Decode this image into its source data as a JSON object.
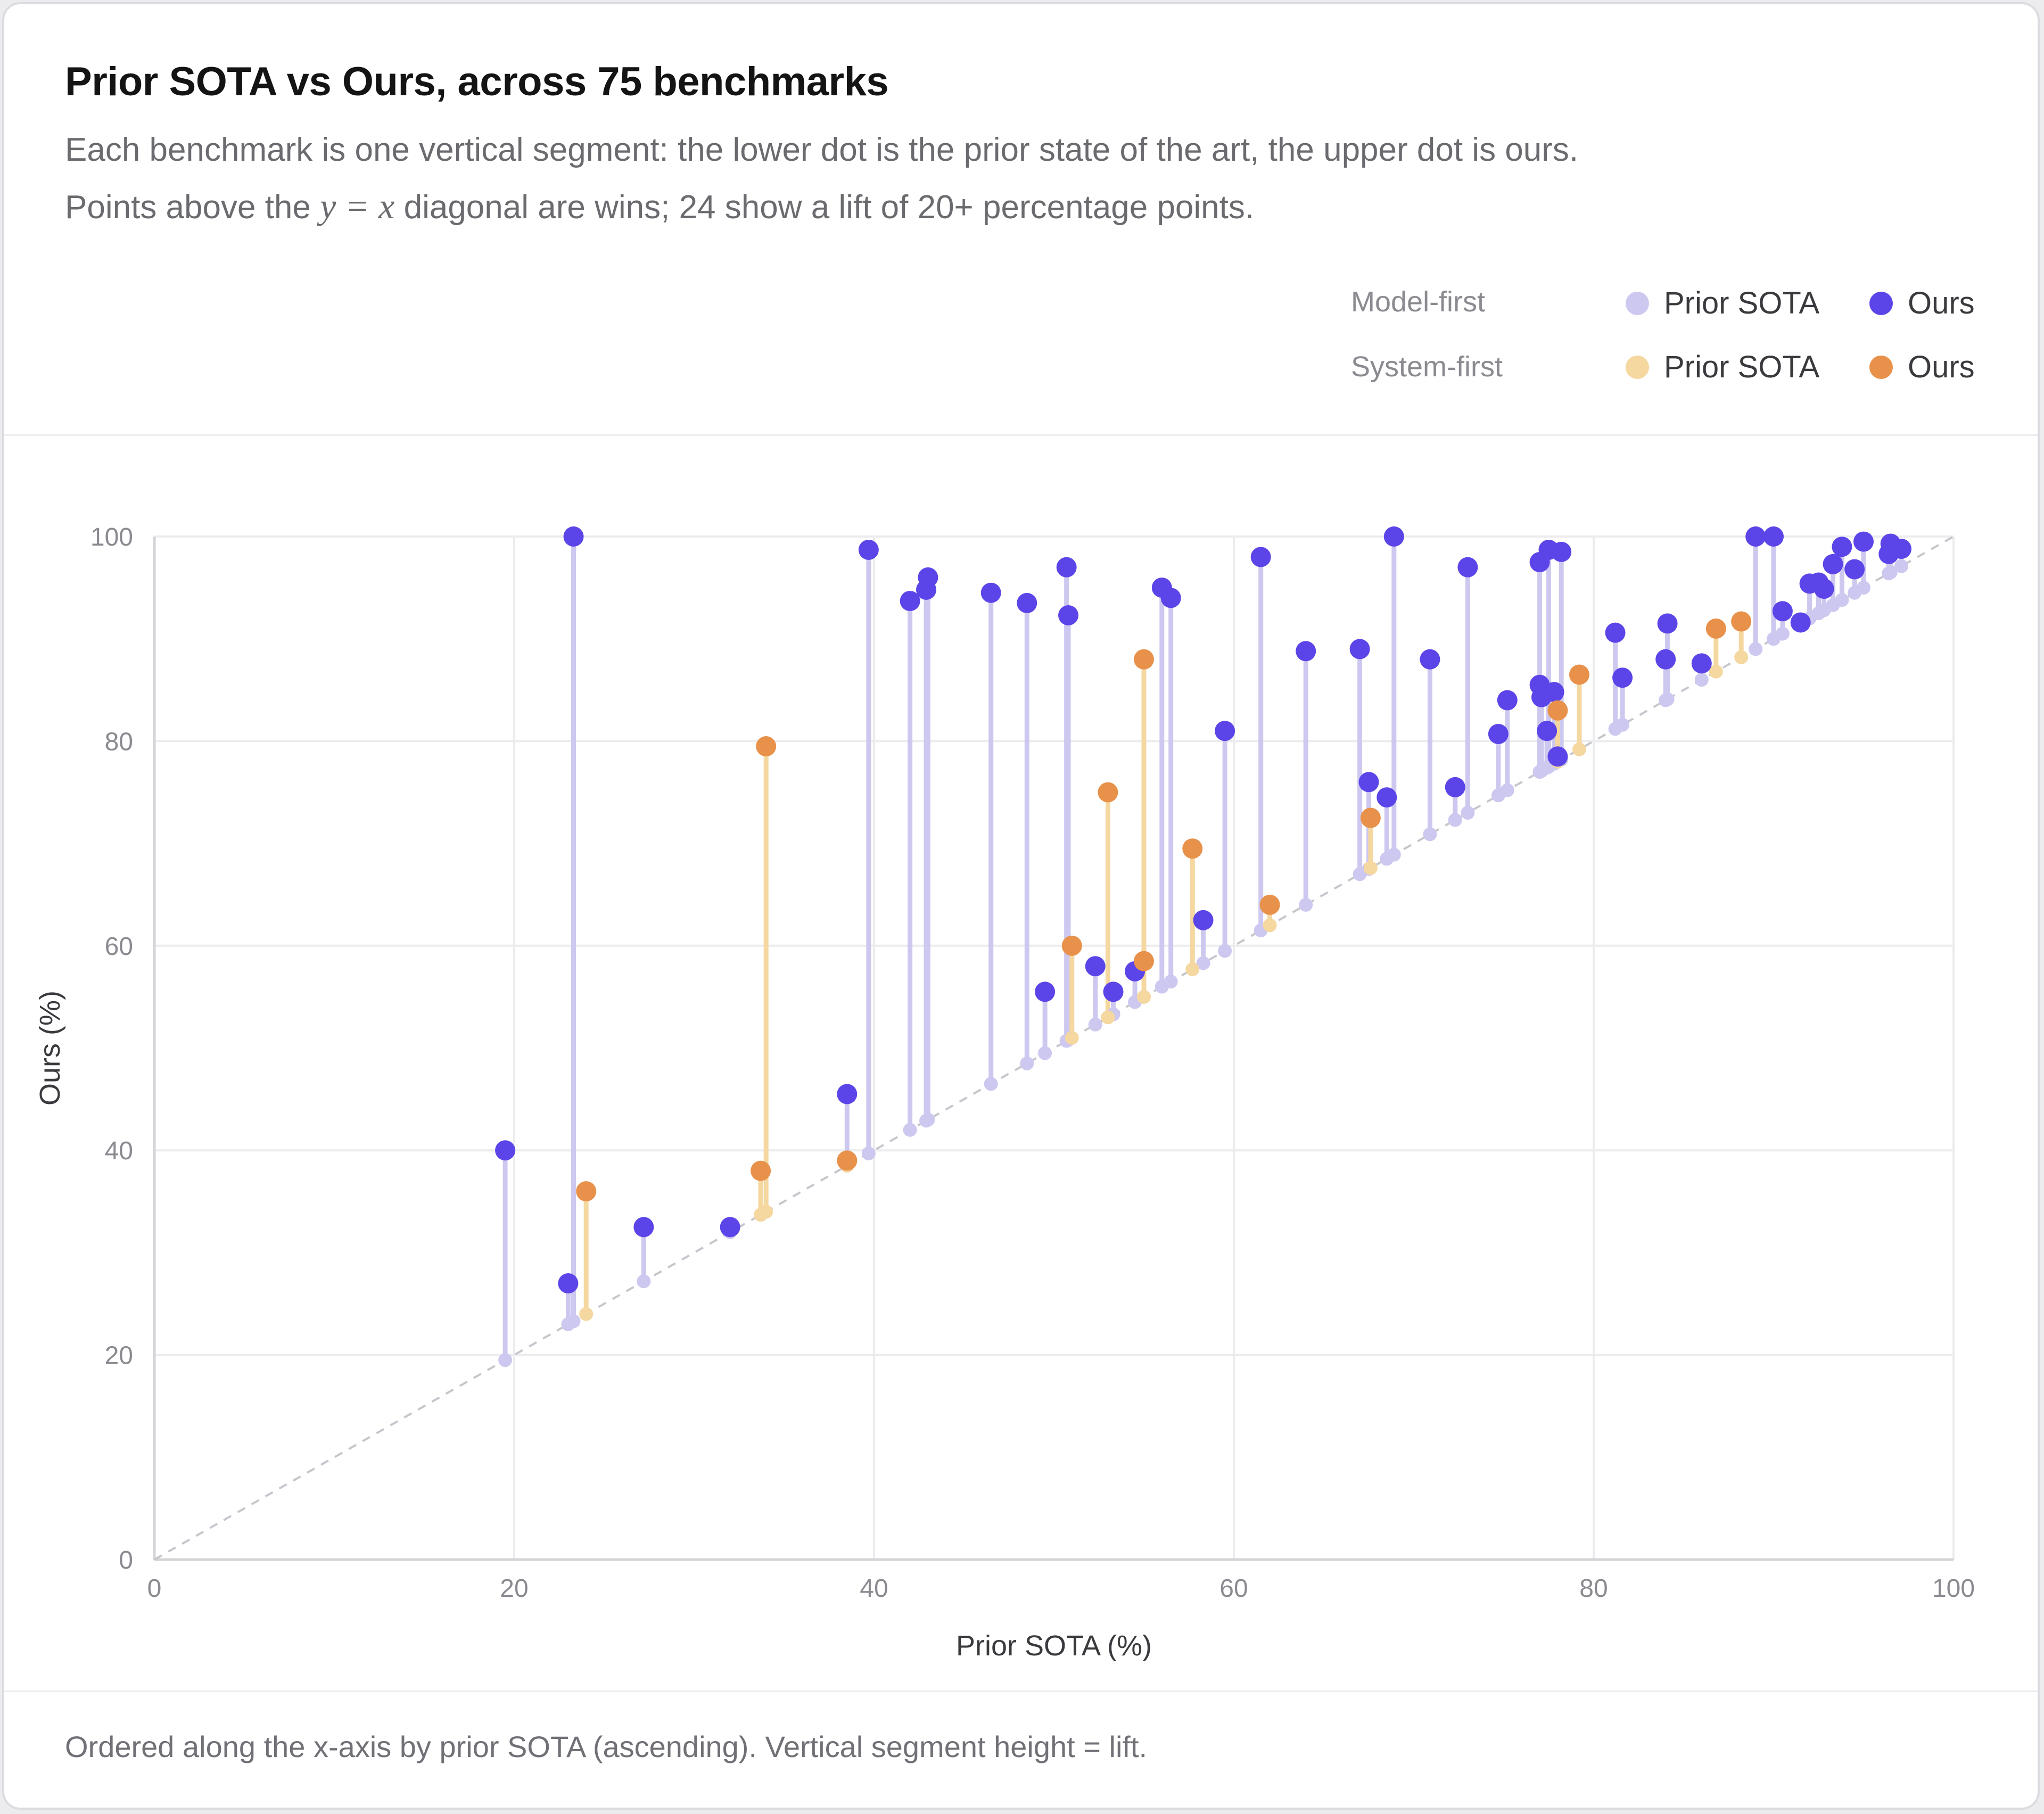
{
  "header": {
    "title": "Prior SOTA vs Ours, across 75 benchmarks",
    "subtitle_line1": "Each benchmark is one vertical segment: the lower dot is the prior state of the art, the upper dot is ours.",
    "subtitle_line2_pre": "Points above the ",
    "subtitle_line2_eq": "y = x",
    "subtitle_line2_post": " diagonal are wins; 24 show a lift of 20+ percentage points."
  },
  "legend": {
    "groups": [
      {
        "label": "Model-first",
        "prior_label": "Prior SOTA",
        "ours_label": "Ours",
        "prior_color": "#cdc8ef",
        "ours_color": "#5b45e8"
      },
      {
        "label": "System-first",
        "prior_label": "Prior SOTA",
        "ours_label": "Ours",
        "prior_color": "#f5d7a0",
        "ours_color": "#e8914a"
      }
    ]
  },
  "footer": {
    "text": "Ordered along the x-axis by prior SOTA (ascending). Vertical segment height = lift."
  },
  "colors": {
    "model_prior": "#cdc8ef",
    "model_ours": "#5b45e8",
    "system_prior": "#f5d7a0",
    "system_ours": "#e8914a",
    "grid": "#ececef",
    "diagonal": "#c6c6cc"
  },
  "chart_data": {
    "type": "scatter",
    "xlabel": "Prior SOTA (%)",
    "ylabel": "Ours (%)",
    "xlim": [
      0,
      100
    ],
    "ylim": [
      0,
      100
    ],
    "xticks": [
      0,
      20,
      40,
      60,
      80,
      100
    ],
    "yticks": [
      0,
      20,
      40,
      60,
      80,
      100
    ],
    "grid": true,
    "reference_line": "y = x",
    "legend_position": "top-right",
    "series": [
      {
        "name": "Model-first",
        "points": [
          {
            "prior": 19.5,
            "ours": 40.0
          },
          {
            "prior": 23.0,
            "ours": 27.0
          },
          {
            "prior": 23.3,
            "ours": 100.0
          },
          {
            "prior": 27.2,
            "ours": 32.5
          },
          {
            "prior": 32.0,
            "ours": 32.5
          },
          {
            "prior": 38.5,
            "ours": 45.5
          },
          {
            "prior": 39.7,
            "ours": 98.7
          },
          {
            "prior": 42.0,
            "ours": 93.7
          },
          {
            "prior": 42.9,
            "ours": 94.8
          },
          {
            "prior": 43.0,
            "ours": 96.0
          },
          {
            "prior": 46.5,
            "ours": 94.5
          },
          {
            "prior": 48.5,
            "ours": 93.5
          },
          {
            "prior": 49.5,
            "ours": 55.5
          },
          {
            "prior": 50.7,
            "ours": 97.0
          },
          {
            "prior": 50.8,
            "ours": 92.3
          },
          {
            "prior": 52.3,
            "ours": 58.0
          },
          {
            "prior": 53.3,
            "ours": 55.5
          },
          {
            "prior": 54.5,
            "ours": 57.5
          },
          {
            "prior": 56.0,
            "ours": 95.0
          },
          {
            "prior": 56.5,
            "ours": 94.0
          },
          {
            "prior": 58.3,
            "ours": 62.5
          },
          {
            "prior": 59.5,
            "ours": 81.0
          },
          {
            "prior": 61.5,
            "ours": 98.0
          },
          {
            "prior": 64.0,
            "ours": 88.8
          },
          {
            "prior": 67.0,
            "ours": 89.0
          },
          {
            "prior": 67.5,
            "ours": 76.0
          },
          {
            "prior": 68.5,
            "ours": 74.5
          },
          {
            "prior": 68.9,
            "ours": 100.0
          },
          {
            "prior": 70.9,
            "ours": 88.0
          },
          {
            "prior": 72.3,
            "ours": 75.5
          },
          {
            "prior": 73.0,
            "ours": 97.0
          },
          {
            "prior": 74.7,
            "ours": 80.7
          },
          {
            "prior": 75.2,
            "ours": 84.0
          },
          {
            "prior": 77.0,
            "ours": 97.5
          },
          {
            "prior": 77.0,
            "ours": 85.5
          },
          {
            "prior": 77.1,
            "ours": 84.3
          },
          {
            "prior": 77.4,
            "ours": 81.0
          },
          {
            "prior": 77.5,
            "ours": 98.7
          },
          {
            "prior": 77.8,
            "ours": 84.8
          },
          {
            "prior": 78.0,
            "ours": 78.5
          },
          {
            "prior": 78.2,
            "ours": 98.5
          },
          {
            "prior": 81.2,
            "ours": 90.6
          },
          {
            "prior": 81.6,
            "ours": 86.2
          },
          {
            "prior": 84.0,
            "ours": 88.0
          },
          {
            "prior": 84.1,
            "ours": 91.5
          },
          {
            "prior": 86.0,
            "ours": 87.6
          },
          {
            "prior": 89.0,
            "ours": 100.0
          },
          {
            "prior": 90.0,
            "ours": 100.0
          },
          {
            "prior": 90.5,
            "ours": 92.7
          },
          {
            "prior": 91.5,
            "ours": 91.6
          },
          {
            "prior": 92.0,
            "ours": 95.4
          },
          {
            "prior": 92.5,
            "ours": 95.5
          },
          {
            "prior": 92.8,
            "ours": 94.9
          },
          {
            "prior": 93.3,
            "ours": 97.3
          },
          {
            "prior": 93.8,
            "ours": 99.0
          },
          {
            "prior": 94.5,
            "ours": 96.8
          },
          {
            "prior": 95.0,
            "ours": 99.5
          },
          {
            "prior": 96.4,
            "ours": 98.3
          },
          {
            "prior": 96.5,
            "ours": 99.3
          },
          {
            "prior": 97.1,
            "ours": 98.8
          }
        ]
      },
      {
        "name": "System-first",
        "points": [
          {
            "prior": 24.0,
            "ours": 36.0
          },
          {
            "prior": 33.7,
            "ours": 38.0
          },
          {
            "prior": 34.0,
            "ours": 79.5
          },
          {
            "prior": 38.5,
            "ours": 39.0
          },
          {
            "prior": 51.0,
            "ours": 60.0
          },
          {
            "prior": 53.0,
            "ours": 75.0
          },
          {
            "prior": 55.0,
            "ours": 58.5
          },
          {
            "prior": 55.0,
            "ours": 88.0
          },
          {
            "prior": 57.7,
            "ours": 69.5
          },
          {
            "prior": 62.0,
            "ours": 64.0
          },
          {
            "prior": 67.6,
            "ours": 72.5
          },
          {
            "prior": 78.0,
            "ours": 83.0
          },
          {
            "prior": 79.2,
            "ours": 86.5
          },
          {
            "prior": 86.8,
            "ours": 91.0
          },
          {
            "prior": 88.2,
            "ours": 91.7
          }
        ]
      }
    ]
  }
}
